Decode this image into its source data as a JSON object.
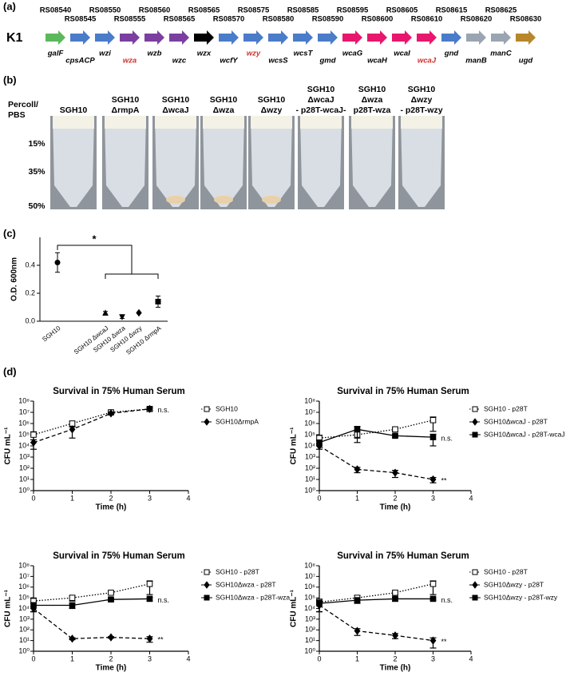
{
  "panel_labels": [
    "(a)",
    "(b)",
    "(c)",
    "(d)"
  ],
  "gene_cluster": {
    "strain": "K1",
    "genes": [
      {
        "id": "RS08540",
        "name": "galF",
        "color": "#5cb85c",
        "name_color": "#000000"
      },
      {
        "id": "RS08545",
        "name": "cpsACP",
        "color": "#4a7cc9",
        "name_color": "#000000"
      },
      {
        "id": "RS08550",
        "name": "wzi",
        "color": "#4a7cc9",
        "name_color": "#000000"
      },
      {
        "id": "RS08555",
        "name": "wza",
        "color": "#7b3fa0",
        "name_color": "#d0312d"
      },
      {
        "id": "RS08560",
        "name": "wzb",
        "color": "#7b3fa0",
        "name_color": "#000000"
      },
      {
        "id": "RS08565",
        "name": "wzc",
        "color": "#7b3fa0",
        "name_color": "#000000"
      },
      {
        "id": "RS08565",
        "name": "wzx",
        "color": "#000000",
        "name_color": "#000000"
      },
      {
        "id": "RS08570",
        "name": "wcfY",
        "color": "#4a7cc9",
        "name_color": "#000000"
      },
      {
        "id": "RS08575",
        "name": "wzy",
        "color": "#4a7cc9",
        "name_color": "#d0312d"
      },
      {
        "id": "RS08580",
        "name": "wcsS",
        "color": "#4a7cc9",
        "name_color": "#000000"
      },
      {
        "id": "RS08585",
        "name": "wcsT",
        "color": "#4a7cc9",
        "name_color": "#000000"
      },
      {
        "id": "RS08590",
        "name": "gmd",
        "color": "#4a7cc9",
        "name_color": "#000000"
      },
      {
        "id": "RS08595",
        "name": "wcaG",
        "color": "#e8176d",
        "name_color": "#000000"
      },
      {
        "id": "RS08600",
        "name": "wcaH",
        "color": "#e8176d",
        "name_color": "#000000"
      },
      {
        "id": "RS08605",
        "name": "wcaI",
        "color": "#e8176d",
        "name_color": "#000000"
      },
      {
        "id": "RS08610",
        "name": "wcaJ",
        "color": "#e8176d",
        "name_color": "#d0312d"
      },
      {
        "id": "RS08615",
        "name": "gnd",
        "color": "#4a7cc9",
        "name_color": "#000000"
      },
      {
        "id": "RS08620",
        "name": "manB",
        "color": "#9aa5b1",
        "name_color": "#000000"
      },
      {
        "id": "RS08625",
        "name": "manC",
        "color": "#9aa5b1",
        "name_color": "#000000"
      },
      {
        "id": "RS08630",
        "name": "ugd",
        "color": "#b8862b",
        "name_color": "#000000"
      }
    ]
  },
  "tubes": {
    "header": [
      "Percoll/",
      "PBS"
    ],
    "rows": [
      "15%",
      "35%",
      "50%"
    ],
    "columns": [
      [
        "SGH10"
      ],
      [
        "SGH10",
        "ΔrmpA"
      ],
      [
        "SGH10",
        "ΔwcaJ"
      ],
      [
        "SGH10",
        "Δwza"
      ],
      [
        "SGH10",
        "Δwzy"
      ],
      [
        "SGH10",
        "ΔwcaJ",
        "- p28T-wcaJ-"
      ],
      [
        "SGH10",
        "Δwza",
        "p28T-wza"
      ],
      [
        "SGH10",
        "Δwzy",
        "- p28T-wzy"
      ]
    ]
  },
  "chart_data": [
    {
      "type": "scatter",
      "ylabel": "O.D. 600nm",
      "categories": [
        "SGH10",
        "SGH10 ΔwcaJ",
        "SGH10 Δwza",
        "SGH10 Δwzy",
        "SGH10 ΔrmpA"
      ],
      "values": [
        0.42,
        0.06,
        0.03,
        0.06,
        0.14
      ],
      "errors": [
        0.07,
        0.01,
        0.01,
        0.005,
        0.04
      ],
      "markers": [
        "circle",
        "triangle",
        "triangle-down",
        "diamond",
        "square"
      ],
      "color": "#000000",
      "ylim": [
        0,
        0.6
      ],
      "yticks": [
        {
          "value": 0,
          "label": "0.0"
        },
        0.2,
        0.4
      ],
      "annotation": "*"
    },
    {
      "type": "line",
      "title": "Survival in 75% Human Serum",
      "xlabel": "Time (h)",
      "ylabel": "CFU mL⁻¹",
      "x": [
        0,
        1,
        2,
        3
      ],
      "xlim": [
        0,
        4
      ],
      "xticks": [
        0,
        1,
        2,
        3,
        4
      ],
      "log_y": true,
      "ylim": [
        1,
        100000000
      ],
      "yticks": [
        {
          "value": 1,
          "label": "10⁰"
        },
        {
          "value": 10,
          "label": "10¹"
        },
        {
          "value": 100,
          "label": "10²"
        },
        {
          "value": 1000,
          "label": "10³"
        },
        {
          "value": 10000,
          "label": "10⁴"
        },
        {
          "value": 100000,
          "label": "10⁵"
        },
        {
          "value": 1000000,
          "label": "10⁶"
        },
        {
          "value": 10000000,
          "label": "10⁷"
        },
        {
          "value": 100000000,
          "label": "10⁸"
        }
      ],
      "series": [
        {
          "name": "SGH10",
          "color": "#000000",
          "marker": "square-open",
          "dash": "dotted",
          "values": [
            100000,
            1000000,
            10000000,
            20000000
          ],
          "errors": [
            80000,
            500000,
            3000000,
            5000000
          ]
        },
        {
          "name": "SGH10ΔrmpA",
          "color": "#000000",
          "marker": "diamond",
          "dash": "dashed",
          "values": [
            20000,
            300000,
            8000000,
            20000000
          ],
          "errors": [
            15000,
            250000,
            2000000,
            8000000
          ],
          "annotation": "n.s."
        }
      ]
    },
    {
      "type": "line",
      "title": "Survival in 75% Human Serum",
      "xlabel": "Time (h)",
      "ylabel": "CFU mL⁻¹",
      "x": [
        0,
        1,
        2,
        3
      ],
      "xlim": [
        0,
        4
      ],
      "xticks": [
        0,
        1,
        2,
        3,
        4
      ],
      "log_y": true,
      "ylim": [
        1,
        100000000
      ],
      "yticks": [
        {
          "value": 1,
          "label": "10⁰"
        },
        {
          "value": 10,
          "label": "10¹"
        },
        {
          "value": 100,
          "label": "10²"
        },
        {
          "value": 1000,
          "label": "10³"
        },
        {
          "value": 10000,
          "label": "10⁴"
        },
        {
          "value": 100000,
          "label": "10⁵"
        },
        {
          "value": 1000000,
          "label": "10⁶"
        },
        {
          "value": 10000000,
          "label": "10⁷"
        },
        {
          "value": 100000000,
          "label": "10⁸"
        }
      ],
      "series": [
        {
          "name": "SGH10 - p28T",
          "color": "#000000",
          "marker": "square-open",
          "dash": "dotted",
          "values": [
            50000,
            100000,
            300000,
            2000000
          ],
          "errors": [
            40000,
            80000,
            100000,
            1800000
          ]
        },
        {
          "name": "SGH10ΔwcaJ - p28T",
          "color": "#000000",
          "marker": "diamond",
          "dash": "dashed",
          "values": [
            10000,
            80,
            40,
            10
          ],
          "errors": [
            5000,
            40,
            25,
            5
          ],
          "annotation": "**"
        },
        {
          "name": "SGH10ΔwcaJ - p28T-wcaJ",
          "color": "#000000",
          "marker": "square",
          "dash": "solid",
          "values": [
            20000,
            300000,
            80000,
            60000
          ],
          "errors": [
            10000,
            250000,
            20000,
            50000
          ],
          "annotation": "n.s."
        }
      ]
    },
    {
      "type": "line",
      "title": "Survival in 75% Human Serum",
      "xlabel": "Time (h)",
      "ylabel": "CFU mL⁻¹",
      "x": [
        0,
        1,
        2,
        3
      ],
      "xlim": [
        0,
        4
      ],
      "xticks": [
        0,
        1,
        2,
        3,
        4
      ],
      "log_y": true,
      "ylim": [
        1,
        100000000
      ],
      "yticks": [
        {
          "value": 1,
          "label": "10⁰"
        },
        {
          "value": 10,
          "label": "10¹"
        },
        {
          "value": 100,
          "label": "10²"
        },
        {
          "value": 1000,
          "label": "10³"
        },
        {
          "value": 10000,
          "label": "10⁴"
        },
        {
          "value": 100000,
          "label": "10⁵"
        },
        {
          "value": 1000000,
          "label": "10⁶"
        },
        {
          "value": 10000000,
          "label": "10⁷"
        },
        {
          "value": 100000000,
          "label": "10⁸"
        }
      ],
      "series": [
        {
          "name": "SGH10 - p28T",
          "color": "#000000",
          "marker": "square-open",
          "dash": "dotted",
          "values": [
            50000,
            100000,
            300000,
            2000000
          ],
          "errors": [
            45000,
            50000,
            80000,
            1800000
          ]
        },
        {
          "name": "SGH10Δwza - p28T",
          "color": "#000000",
          "marker": "diamond",
          "dash": "dashed",
          "values": [
            10000,
            15,
            20,
            15
          ],
          "errors": [
            5000,
            3,
            3,
            8
          ],
          "annotation": "**"
        },
        {
          "name": "SGH10Δwza - p28T-wza",
          "color": "#000000",
          "marker": "square",
          "dash": "solid",
          "values": [
            20000,
            20000,
            70000,
            80000
          ],
          "errors": [
            15000,
            10000,
            20000,
            30000
          ],
          "annotation": "n.s."
        }
      ]
    },
    {
      "type": "line",
      "title": "Survival in 75% Human Serum",
      "xlabel": "Time (h)",
      "ylabel": "CFU mL⁻¹",
      "x": [
        0,
        1,
        2,
        3
      ],
      "xlim": [
        0,
        4
      ],
      "xticks": [
        0,
        1,
        2,
        3,
        4
      ],
      "log_y": true,
      "ylim": [
        1,
        100000000
      ],
      "yticks": [
        {
          "value": 1,
          "label": "10⁰"
        },
        {
          "value": 10,
          "label": "10¹"
        },
        {
          "value": 100,
          "label": "10²"
        },
        {
          "value": 1000,
          "label": "10³"
        },
        {
          "value": 10000,
          "label": "10⁴"
        },
        {
          "value": 100000,
          "label": "10⁵"
        },
        {
          "value": 1000000,
          "label": "10⁶"
        },
        {
          "value": 10000000,
          "label": "10⁷"
        },
        {
          "value": 100000000,
          "label": "10⁸"
        }
      ],
      "series": [
        {
          "name": "SGH10 - p28T",
          "color": "#000000",
          "marker": "square-open",
          "dash": "dotted",
          "values": [
            40000,
            100000,
            300000,
            2000000
          ],
          "errors": [
            35000,
            60000,
            100000,
            1800000
          ]
        },
        {
          "name": "SGH10Δwzy - p28T",
          "color": "#000000",
          "marker": "diamond",
          "dash": "dashed",
          "values": [
            20000,
            80,
            30,
            10
          ],
          "errors": [
            15000,
            50,
            15,
            8
          ],
          "annotation": "**"
        },
        {
          "name": "SGH10Δwzy - p28T-wzy",
          "color": "#000000",
          "marker": "square",
          "dash": "solid",
          "values": [
            30000,
            60000,
            80000,
            80000
          ],
          "errors": [
            25000,
            30000,
            30000,
            20000
          ],
          "annotation": "n.s."
        }
      ]
    }
  ]
}
